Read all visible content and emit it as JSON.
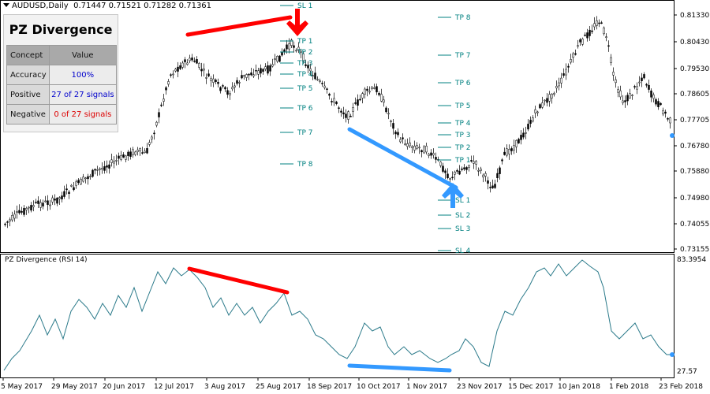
{
  "header": {
    "symbol": "AUDUSD,Daily",
    "ohlc": "0.71447 0.71521 0.71282 0.71361"
  },
  "panel": {
    "title": "PZ Divergence",
    "col1": "Concept",
    "col2": "Value",
    "rows": [
      {
        "concept": "Accuracy",
        "value": "100%",
        "color": "#0000cc"
      },
      {
        "concept": "Positive",
        "value": "27 of 27 signals",
        "color": "#0000cc"
      },
      {
        "concept": "Negative",
        "value": "0 of 27 signals",
        "color": "#dd0000"
      }
    ]
  },
  "price_axis": [
    "0.81330",
    "0.80430",
    "0.79530",
    "0.78605",
    "0.77705",
    "0.76780",
    "0.75880",
    "0.74980",
    "0.74055",
    "0.73155"
  ],
  "rsi_axis": {
    "top": "83.3954",
    "bottom": "27.57"
  },
  "indicator": {
    "label": "PZ Divergence (RSI 14)"
  },
  "time_axis": [
    "5 May 2017",
    "29 May 2017",
    "20 Jun 2017",
    "12 Jul 2017",
    "3 Aug 2017",
    "25 Aug 2017",
    "18 Sep 2017",
    "10 Oct 2017",
    "1 Nov 2017",
    "23 Nov 2017",
    "15 Dec 2017",
    "10 Jan 2018",
    "1 Feb 2018",
    "23 Feb 2018"
  ],
  "levels_a": [
    "SL 1",
    "TP 1",
    "TP 2",
    "TP 3",
    "TP 4",
    "TP 5",
    "TP 6",
    "TP 7",
    "TP 8"
  ],
  "levels_b": [
    "TP 8",
    "TP 7",
    "TP 6",
    "TP 5",
    "TP 4",
    "TP 3",
    "TP 2",
    "TP 1",
    "SL 1",
    "SL 2",
    "SL 3",
    "SL 4"
  ],
  "colors": {
    "bear": "#ff0000",
    "bull": "#3399ff",
    "levels": "#008080",
    "rsi": "#2b7a8a"
  }
}
